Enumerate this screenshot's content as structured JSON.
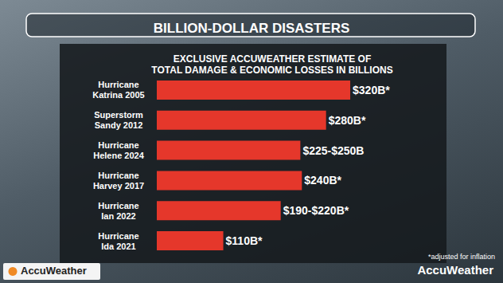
{
  "chart_data": {
    "type": "bar",
    "title": "BILLION-DOLLAR DISASTERS",
    "subtitle": "EXCLUSIVE ACCUWEATHER ESTIMATE OF\nTOTAL DAMAGE & ECONOMIC LOSSES IN BILLIONS",
    "categories": [
      "Hurricane\nKatrina 2005",
      "Superstorm\nSandy 2012",
      "Hurricane\nHelene 2024",
      "Hurricane\nHarvey 2017",
      "Hurricane\nIan 2022",
      "Hurricane\nIda 2021"
    ],
    "values": [
      320,
      280,
      237.5,
      240,
      205,
      110
    ],
    "value_labels": [
      "$320B*",
      "$280B*",
      "$225-$250B",
      "$240B*",
      "$190-$220B*",
      "$110B*"
    ],
    "color": "#e5372b",
    "orientation": "horizontal",
    "data_labels": true,
    "tick_labels": false,
    "grid": false,
    "xlim": [
      0,
      420
    ],
    "annotations": [
      "*adjusted for inflation",
      "AccuWeather",
      "AccuWeather"
    ]
  }
}
